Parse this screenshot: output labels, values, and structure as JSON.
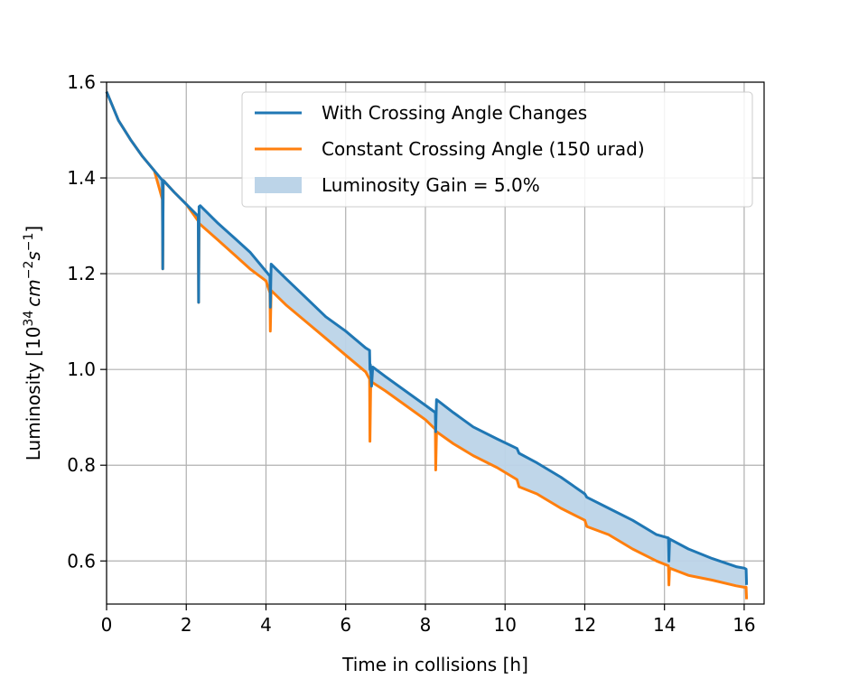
{
  "chart_data": {
    "type": "line",
    "title": "",
    "xlabel": "Time in collisions [h]",
    "ylabel_prefix": "Luminosity [10",
    "ylabel_exp": "34",
    "ylabel_unit": "cm",
    "ylabel_exp2": "−2",
    "ylabel_s": "s",
    "ylabel_exp3": "−1",
    "ylabel_suffix": "]",
    "xlim": [
      0,
      16.5
    ],
    "ylim": [
      0.51,
      1.6
    ],
    "x_ticks": [
      0,
      2,
      4,
      6,
      8,
      10,
      12,
      14,
      16
    ],
    "x_tick_labels": [
      "0",
      "2",
      "4",
      "6",
      "8",
      "10",
      "12",
      "14",
      "16"
    ],
    "y_ticks": [
      0.6,
      0.8,
      1.0,
      1.2,
      1.4,
      1.6
    ],
    "y_tick_labels": [
      "0.6",
      "0.8",
      "1.0",
      "1.2",
      "1.4",
      "1.6"
    ],
    "grid": true,
    "legend_position": "top-right",
    "series": [
      {
        "name": "With Crossing Angle Changes",
        "color": "#1f77b4",
        "points": [
          [
            0,
            1.58
          ],
          [
            0.3,
            1.52
          ],
          [
            0.6,
            1.48
          ],
          [
            0.9,
            1.445
          ],
          [
            1.2,
            1.415
          ],
          [
            1.4,
            1.395
          ],
          [
            1.41,
            1.21
          ],
          [
            1.42,
            1.395
          ],
          [
            1.7,
            1.37
          ],
          [
            2.0,
            1.345
          ],
          [
            2.3,
            1.32
          ],
          [
            2.31,
            1.14
          ],
          [
            2.32,
            1.34
          ],
          [
            2.35,
            1.342
          ],
          [
            2.8,
            1.305
          ],
          [
            3.2,
            1.275
          ],
          [
            3.6,
            1.245
          ],
          [
            4.0,
            1.205
          ],
          [
            4.1,
            1.195
          ],
          [
            4.11,
            1.13
          ],
          [
            4.13,
            1.22
          ],
          [
            4.5,
            1.19
          ],
          [
            5.0,
            1.15
          ],
          [
            5.5,
            1.11
          ],
          [
            6.0,
            1.08
          ],
          [
            6.5,
            1.045
          ],
          [
            6.6,
            1.04
          ],
          [
            6.61,
            1.0
          ],
          [
            6.62,
            1.01
          ],
          [
            6.65,
            0.965
          ],
          [
            6.68,
            1.005
          ],
          [
            7.0,
            0.985
          ],
          [
            7.5,
            0.955
          ],
          [
            8.0,
            0.925
          ],
          [
            8.25,
            0.91
          ],
          [
            8.26,
            0.87
          ],
          [
            8.28,
            0.937
          ],
          [
            8.7,
            0.91
          ],
          [
            9.2,
            0.88
          ],
          [
            9.8,
            0.855
          ],
          [
            10.3,
            0.835
          ],
          [
            10.35,
            0.825
          ],
          [
            10.8,
            0.805
          ],
          [
            11.4,
            0.775
          ],
          [
            12.0,
            0.74
          ],
          [
            12.05,
            0.733
          ],
          [
            12.6,
            0.71
          ],
          [
            13.2,
            0.685
          ],
          [
            13.8,
            0.655
          ],
          [
            14.1,
            0.648
          ],
          [
            14.11,
            0.6
          ],
          [
            14.13,
            0.646
          ],
          [
            14.6,
            0.625
          ],
          [
            15.2,
            0.605
          ],
          [
            15.8,
            0.588
          ],
          [
            16.0,
            0.585
          ],
          [
            16.05,
            0.583
          ],
          [
            16.06,
            0.55
          ]
        ]
      },
      {
        "name": "Constant Crossing Angle (150 urad)",
        "color": "#ff7f0e",
        "points": [
          [
            0,
            1.58
          ],
          [
            0.3,
            1.52
          ],
          [
            0.6,
            1.48
          ],
          [
            0.9,
            1.445
          ],
          [
            1.2,
            1.415
          ],
          [
            1.4,
            1.355
          ],
          [
            1.41,
            1.21
          ],
          [
            1.42,
            1.395
          ],
          [
            1.7,
            1.37
          ],
          [
            2.0,
            1.345
          ],
          [
            2.3,
            1.31
          ],
          [
            2.31,
            1.14
          ],
          [
            2.32,
            1.305
          ],
          [
            2.8,
            1.27
          ],
          [
            3.2,
            1.24
          ],
          [
            3.6,
            1.21
          ],
          [
            4.0,
            1.185
          ],
          [
            4.1,
            1.16
          ],
          [
            4.11,
            1.08
          ],
          [
            4.13,
            1.165
          ],
          [
            4.5,
            1.135
          ],
          [
            5.0,
            1.1
          ],
          [
            5.5,
            1.065
          ],
          [
            6.0,
            1.03
          ],
          [
            6.5,
            0.995
          ],
          [
            6.6,
            0.98
          ],
          [
            6.61,
            0.85
          ],
          [
            6.63,
            0.975
          ],
          [
            7.0,
            0.955
          ],
          [
            7.5,
            0.925
          ],
          [
            8.0,
            0.895
          ],
          [
            8.25,
            0.875
          ],
          [
            8.26,
            0.79
          ],
          [
            8.28,
            0.87
          ],
          [
            8.7,
            0.845
          ],
          [
            9.2,
            0.82
          ],
          [
            9.8,
            0.795
          ],
          [
            10.3,
            0.77
          ],
          [
            10.35,
            0.755
          ],
          [
            10.8,
            0.74
          ],
          [
            11.4,
            0.71
          ],
          [
            12.0,
            0.685
          ],
          [
            12.05,
            0.672
          ],
          [
            12.6,
            0.655
          ],
          [
            13.2,
            0.625
          ],
          [
            13.8,
            0.6
          ],
          [
            14.1,
            0.59
          ],
          [
            14.11,
            0.55
          ],
          [
            14.13,
            0.585
          ],
          [
            14.6,
            0.57
          ],
          [
            15.2,
            0.56
          ],
          [
            15.8,
            0.548
          ],
          [
            16.0,
            0.545
          ],
          [
            16.05,
            0.545
          ],
          [
            16.06,
            0.52
          ]
        ]
      }
    ],
    "fill": {
      "name": "Luminosity Gain = 5.0%",
      "color": "#bcd4e8",
      "between": [
        "With Crossing Angle Changes",
        "Constant Crossing Angle (150 urad)"
      ]
    }
  }
}
